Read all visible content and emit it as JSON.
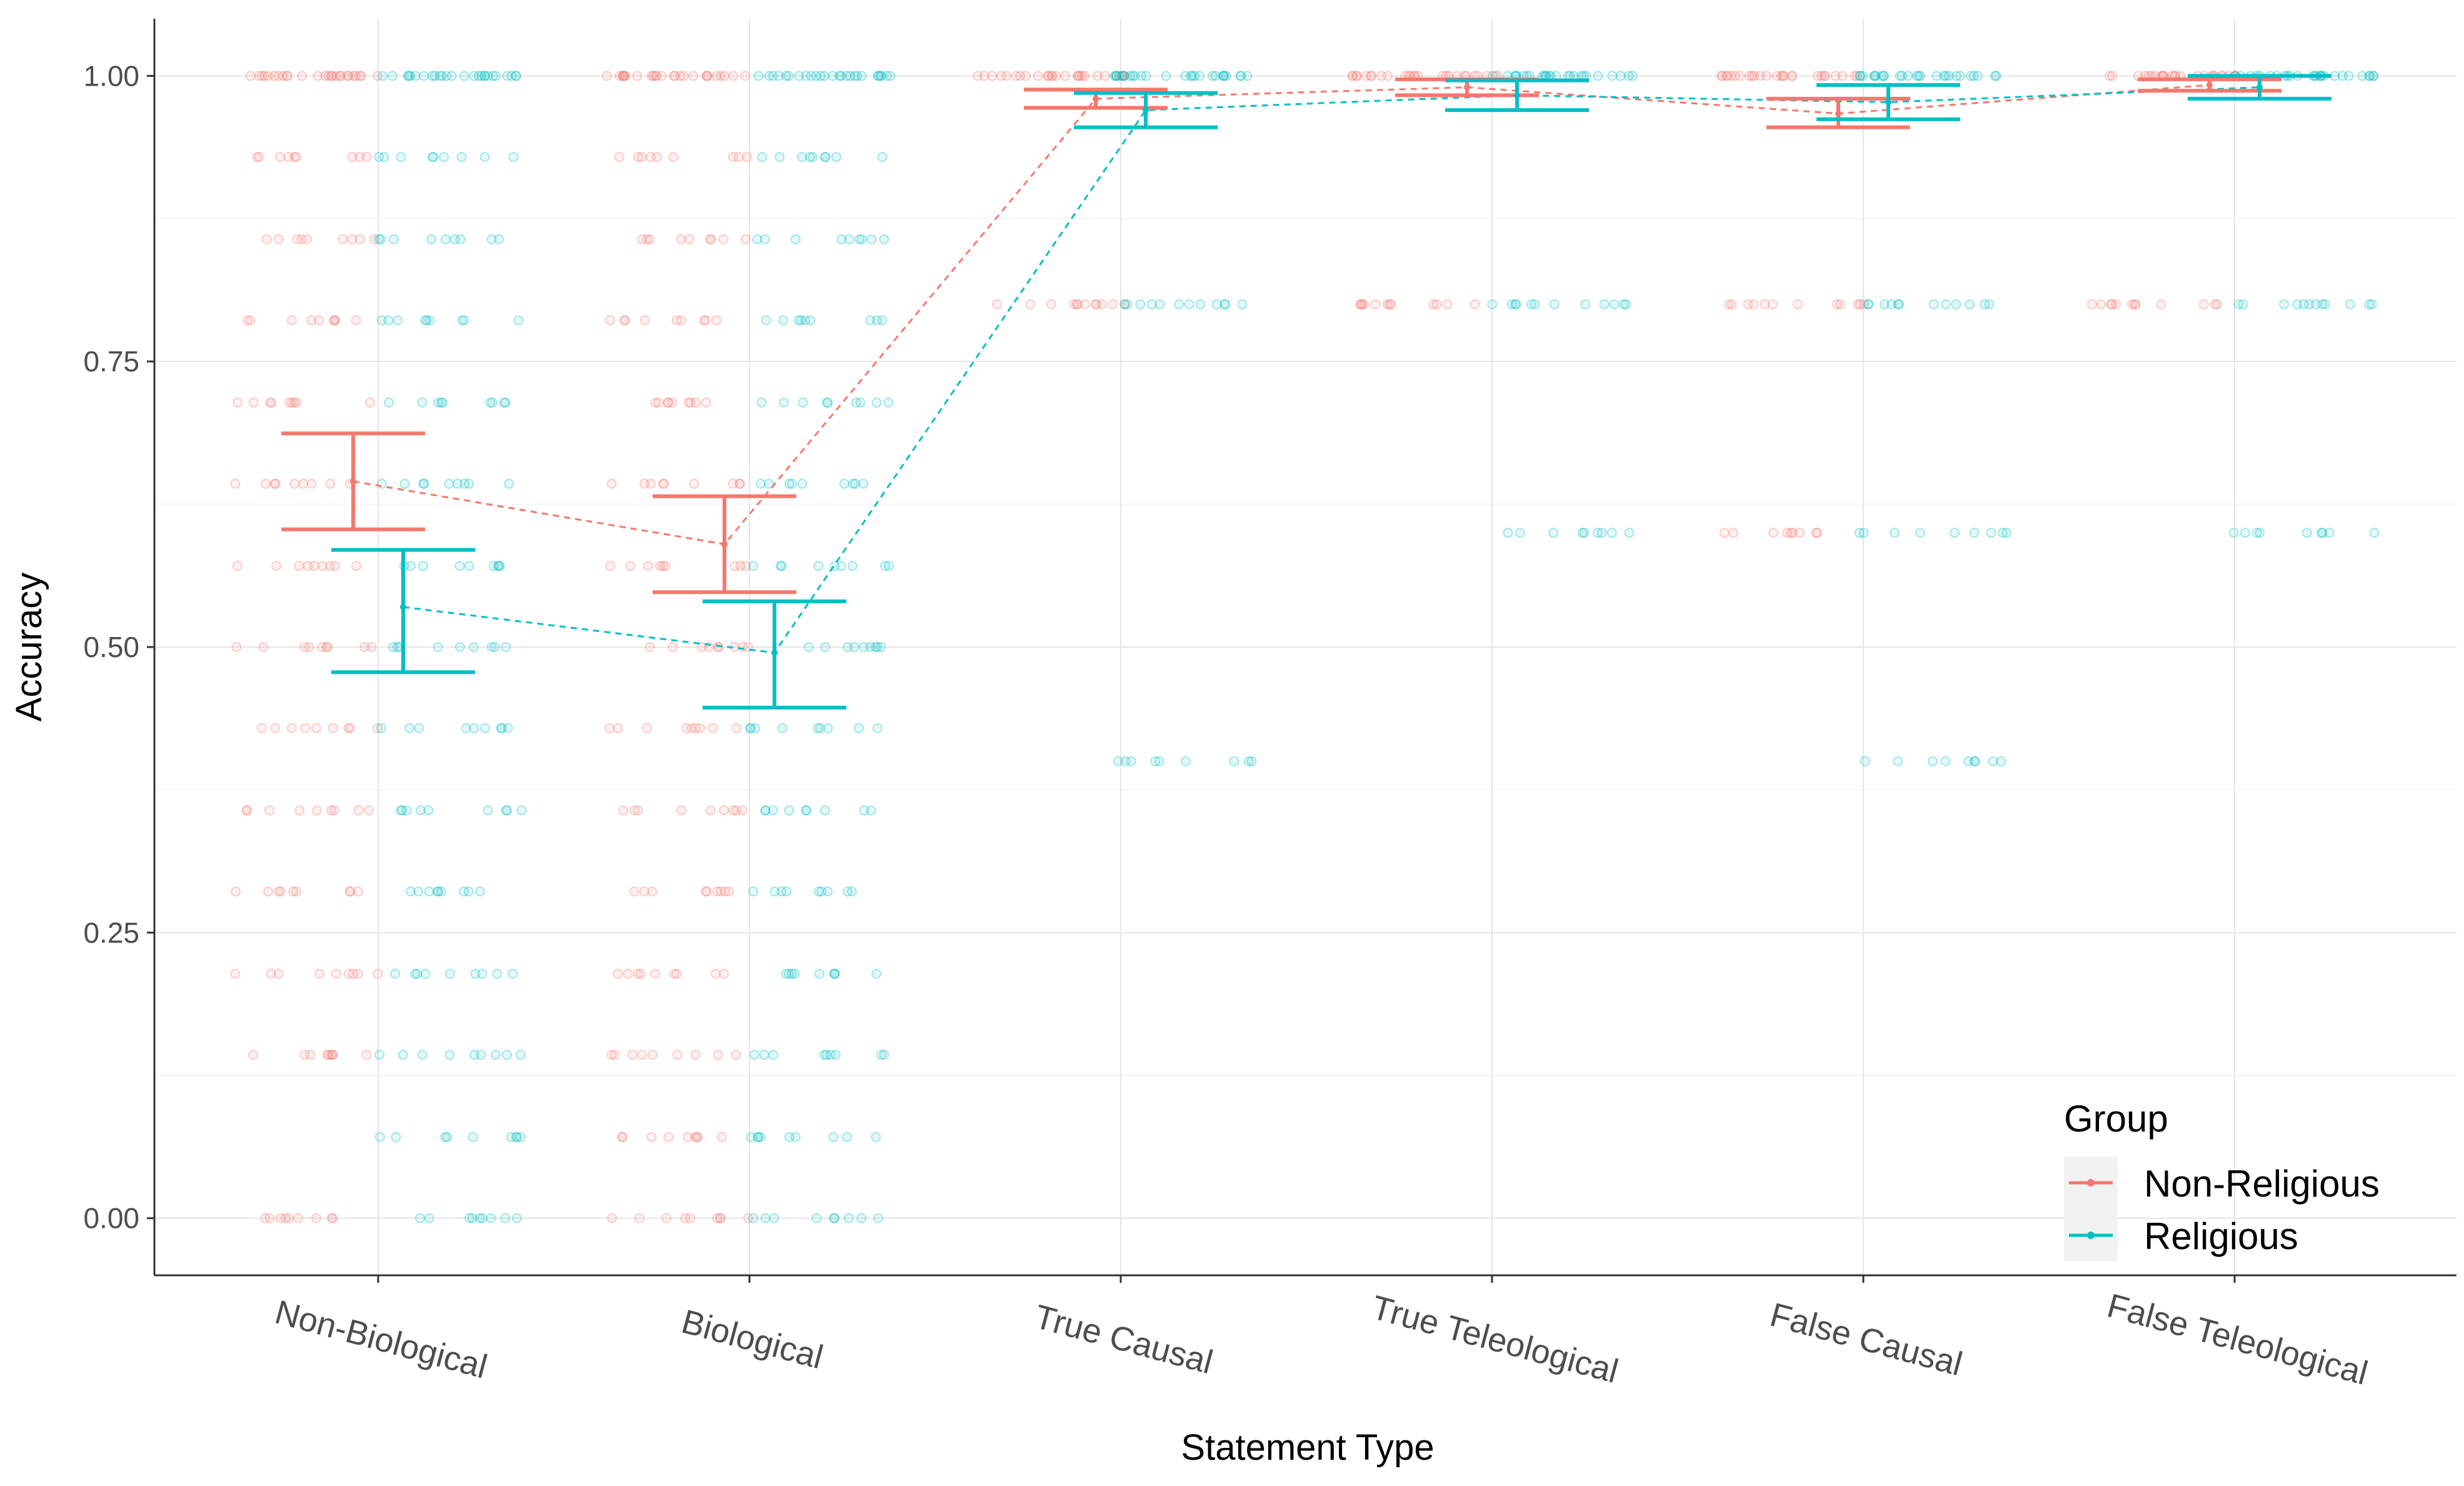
{
  "chart_data": {
    "type": "scatter",
    "title": "",
    "xlabel": "Statement Type",
    "ylabel": "Accuracy",
    "categories": [
      "Non-Biological",
      "Biological",
      "True Causal",
      "True Teleological",
      "False Causal",
      "False Teleological"
    ],
    "ylim": [
      -0.05,
      1.05
    ],
    "yticks": [
      0.0,
      0.25,
      0.5,
      0.75,
      1.0
    ],
    "ytick_labels": [
      "0.00",
      "0.25",
      "0.50",
      "0.75",
      "1.00"
    ],
    "grid": true,
    "legend": {
      "title": "Group",
      "position": "bottom-right"
    },
    "series": [
      {
        "name": "Non-Religious",
        "color": "#F8766D",
        "means": [
          0.645,
          0.59,
          0.98,
          0.99,
          0.967,
          0.992
        ],
        "ci_low": [
          0.603,
          0.548,
          0.972,
          0.983,
          0.955,
          0.987
        ],
        "ci_high": [
          0.687,
          0.632,
          0.988,
          0.997,
          0.98,
          0.997
        ],
        "raw_levels": [
          [
            1.0,
            0.929,
            0.857,
            0.786,
            0.714,
            0.643,
            0.571,
            0.5,
            0.429,
            0.357,
            0.286,
            0.214,
            0.143,
            0.0
          ],
          [
            1.0,
            0.929,
            0.857,
            0.786,
            0.714,
            0.643,
            0.571,
            0.5,
            0.429,
            0.357,
            0.286,
            0.214,
            0.143,
            0.071,
            0.0
          ],
          [
            1.0,
            0.8
          ],
          [
            1.0,
            0.8
          ],
          [
            1.0,
            0.8,
            0.6
          ],
          [
            1.0,
            0.8
          ]
        ]
      },
      {
        "name": "Religious",
        "color": "#00BFC4",
        "means": [
          0.535,
          0.495,
          0.97,
          0.983,
          0.977,
          0.99
        ],
        "ci_low": [
          0.478,
          0.447,
          0.955,
          0.97,
          0.962,
          0.98
        ],
        "ci_high": [
          0.585,
          0.54,
          0.985,
          0.996,
          0.992,
          1.0
        ],
        "raw_levels": [
          [
            1.0,
            0.929,
            0.857,
            0.786,
            0.714,
            0.643,
            0.571,
            0.5,
            0.429,
            0.357,
            0.286,
            0.214,
            0.143,
            0.071,
            0.0
          ],
          [
            1.0,
            0.929,
            0.857,
            0.786,
            0.714,
            0.643,
            0.571,
            0.5,
            0.429,
            0.357,
            0.286,
            0.214,
            0.143,
            0.071,
            0.0
          ],
          [
            1.0,
            0.8,
            0.4
          ],
          [
            1.0,
            0.8,
            0.6
          ],
          [
            1.0,
            0.8,
            0.6,
            0.4
          ],
          [
            1.0,
            0.8,
            0.6
          ]
        ]
      }
    ]
  }
}
